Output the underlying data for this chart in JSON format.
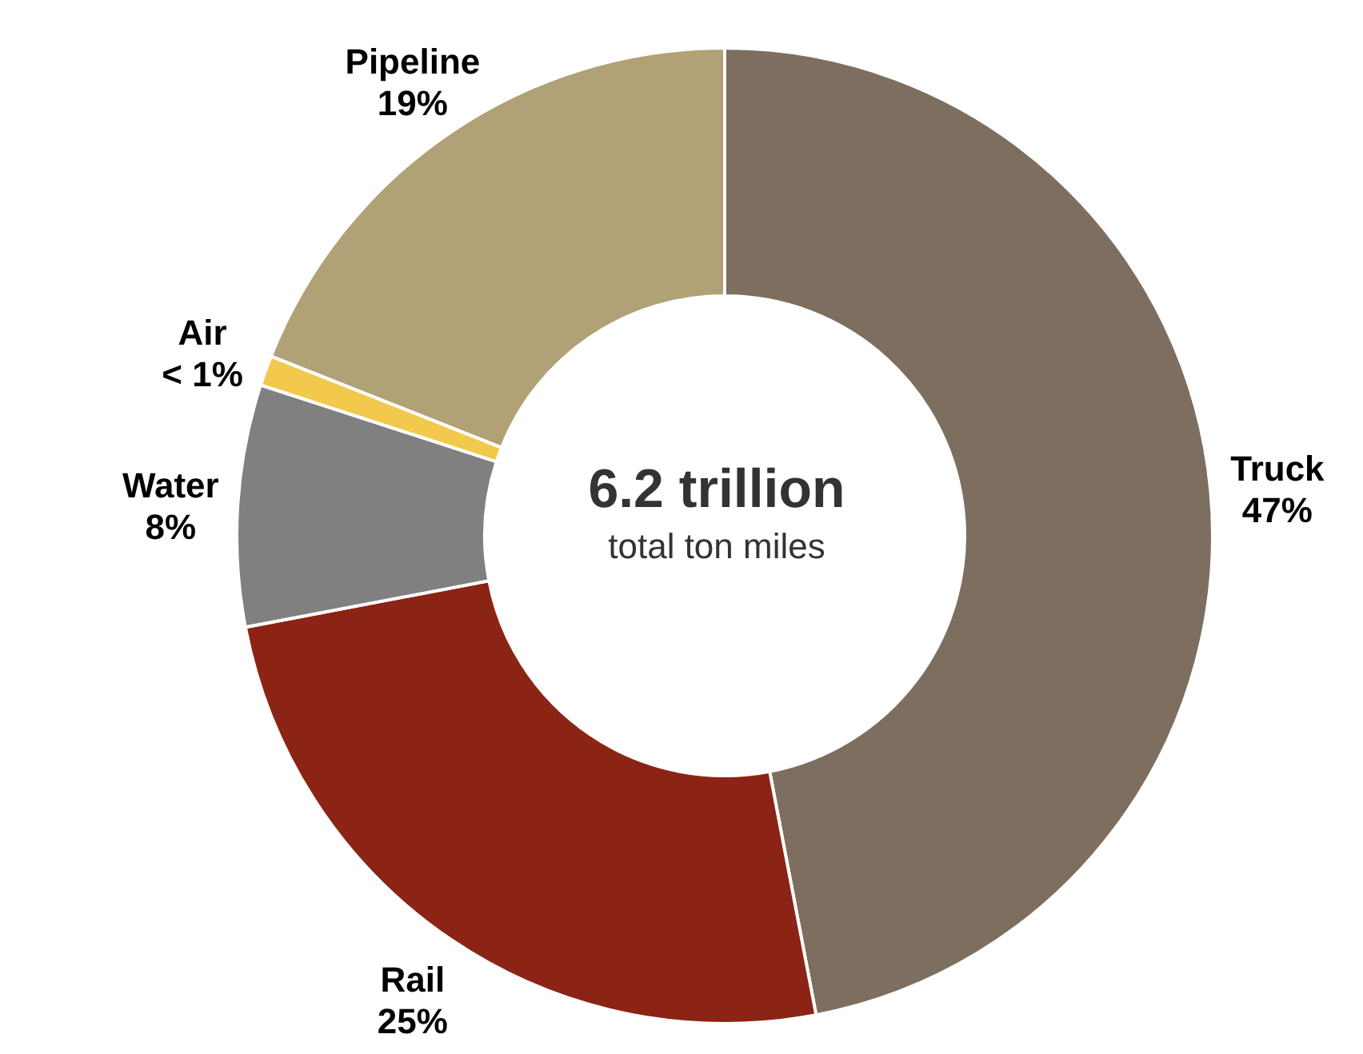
{
  "chart_data": {
    "type": "donut",
    "categories": [
      "Truck",
      "Rail",
      "Water",
      "Air",
      "Pipeline"
    ],
    "values": [
      47,
      25,
      8,
      1,
      19
    ],
    "value_labels": [
      "47%",
      "25%",
      "8%",
      "< 1%",
      "19%"
    ],
    "colors": [
      "#7d6e5f",
      "#8b2415",
      "#808080",
      "#f2c94c",
      "#b0a276"
    ],
    "annotations": [
      "6.2 trillion",
      "total ton miles"
    ]
  }
}
